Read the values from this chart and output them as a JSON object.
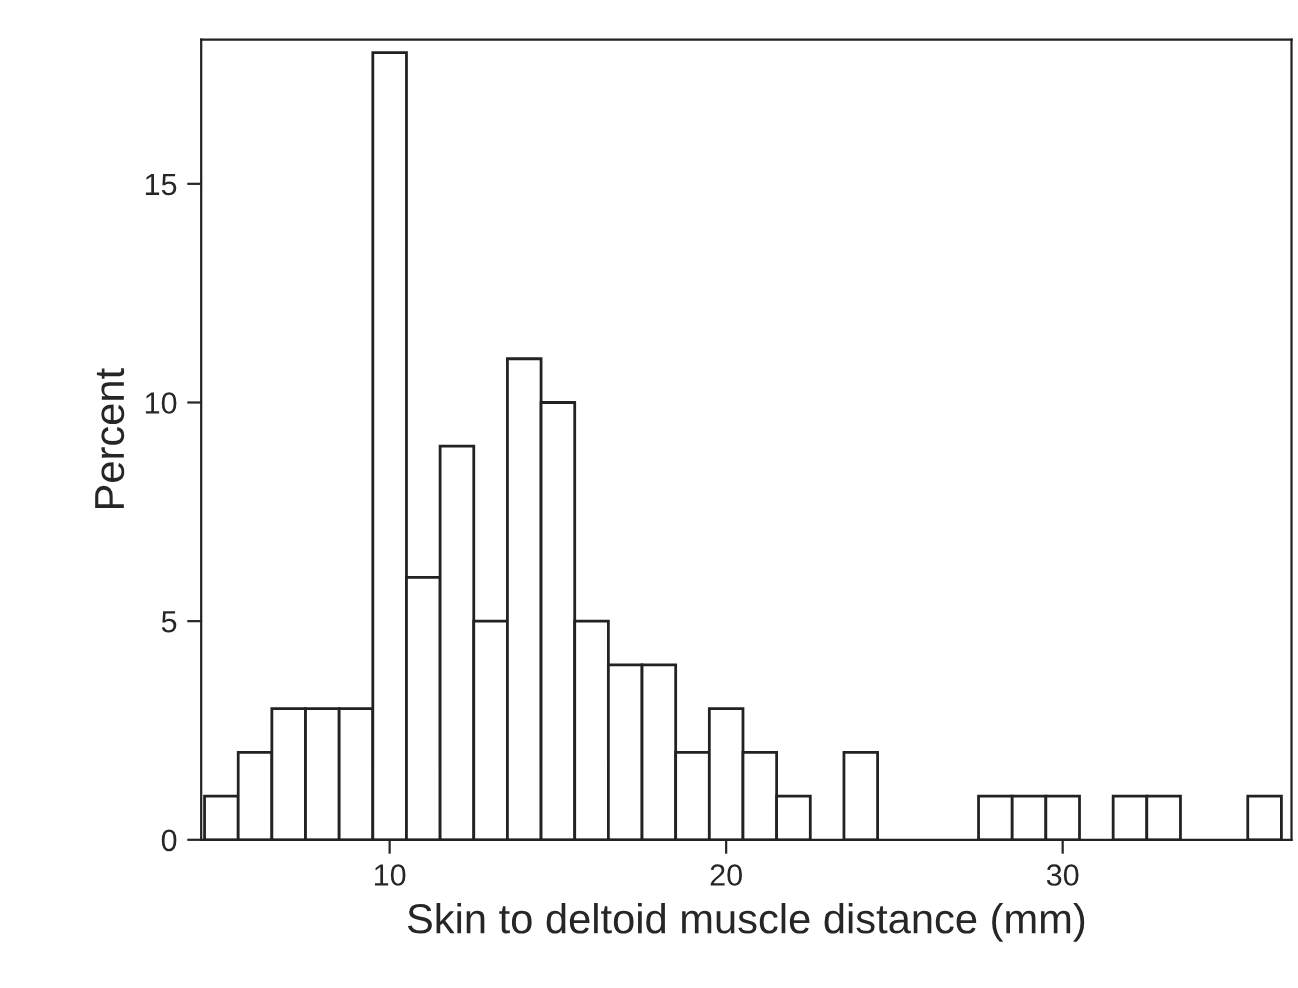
{
  "chart_data": {
    "type": "histogram",
    "xlabel": "Skin to deltoid muscle distance (mm)",
    "ylabel": "Percent",
    "bins": [
      4.5,
      5.5,
      6.5,
      7.5,
      8.5,
      9.5,
      10.5,
      11.5,
      12.5,
      13.5,
      14.5,
      15.5,
      16.5,
      17.5,
      18.5,
      19.5,
      20.5,
      21.5,
      22.5,
      23.5,
      24.5,
      25.5,
      26.5,
      27.5,
      28.5,
      29.5,
      30.5,
      31.5,
      32.5,
      33.5,
      34.5,
      35.5,
      36.5
    ],
    "values": [
      1,
      2,
      3,
      3,
      3,
      18,
      6,
      9,
      5,
      11,
      10,
      5,
      4,
      4,
      2,
      3,
      2,
      1,
      0,
      2,
      0,
      0,
      0,
      1,
      1,
      1,
      0,
      1,
      1,
      0,
      0,
      1
    ],
    "color": "#ffffff",
    "xlim": [
      4.4,
      36.8
    ],
    "ylim": [
      0,
      18.3
    ],
    "xticks": [
      10,
      20,
      30
    ],
    "yticks": [
      0,
      5,
      10,
      15
    ],
    "grid": false
  }
}
